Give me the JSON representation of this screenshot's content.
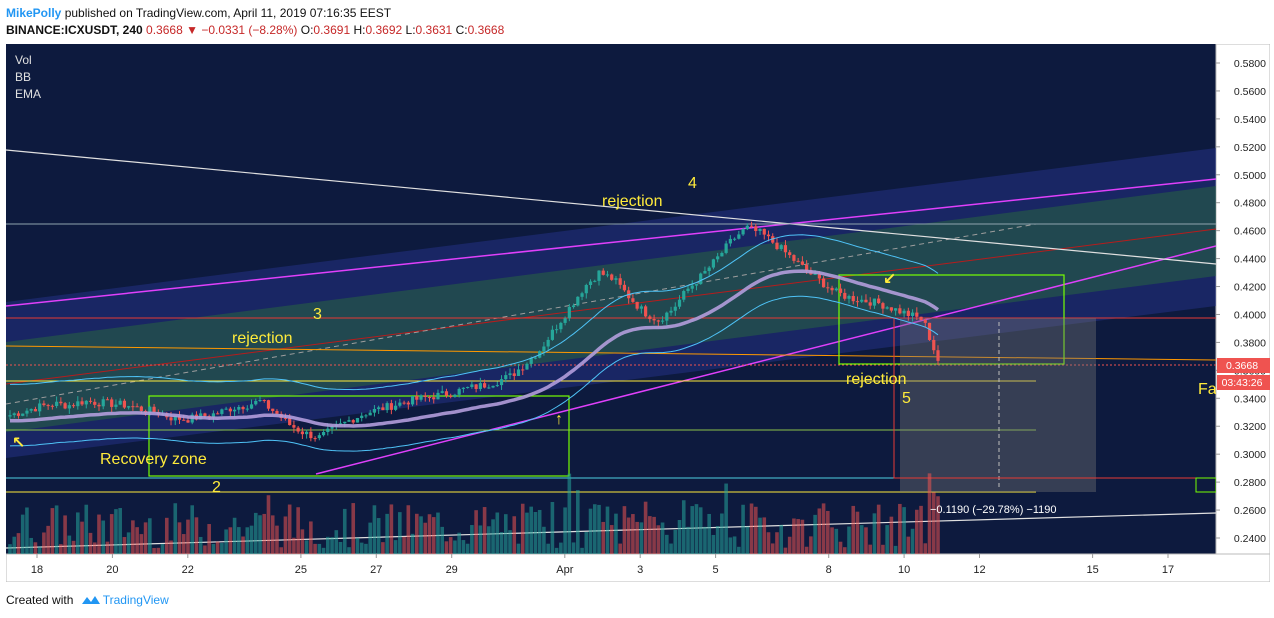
{
  "header": {
    "user": "MikePolly",
    "published_text": " published on TradingView.com, April 11, 2019 07:16:35 EEST",
    "symbol": "BINANCE:ICXUSDT, 240",
    "last": "0.3668",
    "change": "−0.0331 (−8.28%)",
    "o_label": "O:",
    "o_value": "0.3691",
    "h_label": "H:",
    "h_value": "0.3692",
    "l_label": "L:",
    "l_value": "0.3631",
    "c_label": "C:",
    "c_value": "0.3668"
  },
  "indicators": [
    "Vol",
    "BB",
    "EMA"
  ],
  "footer": {
    "created_with": "Created with",
    "brand": "TradingView"
  },
  "colors": {
    "background": "#0d1a3e",
    "up": "#26a69a",
    "down": "#ef5350",
    "annotation": "#ffeb3b",
    "pitchfork_magenta": "#e040fb",
    "ema": "#b39ddb"
  },
  "annotations": [
    {
      "id": "rej1",
      "text": "rejection"
    },
    {
      "id": "n3",
      "text": "3"
    },
    {
      "id": "rej2",
      "text": "rejection"
    },
    {
      "id": "n4",
      "text": "4"
    },
    {
      "id": "rej3",
      "text": "rejection"
    },
    {
      "id": "n5",
      "text": "5"
    },
    {
      "id": "recovery",
      "text": "Recovery zone"
    },
    {
      "id": "n2",
      "text": "2"
    },
    {
      "id": "fa",
      "text": "Fa"
    }
  ],
  "measure_label": "−0.1190 (−29.78%) −1190",
  "price_tags": {
    "current": "0.3668",
    "countdown": "03:43:26"
  },
  "chart_data": {
    "type": "candlestick",
    "ylim": [
      0.235,
      0.59
    ],
    "y_ticks": [
      "0.5800",
      "0.5600",
      "0.5400",
      "0.5200",
      "0.5000",
      "0.4800",
      "0.4600",
      "0.4400",
      "0.4200",
      "0.4000",
      "0.3800",
      "0.3600",
      "0.3400",
      "0.3200",
      "0.3000",
      "0.2800",
      "0.2600",
      "0.2400"
    ],
    "x_ticks": [
      "18",
      "20",
      "22",
      "25",
      "27",
      "29",
      "Apr",
      "3",
      "5",
      "8",
      "10",
      "12",
      "15",
      "17"
    ],
    "price_path": [
      0.328,
      0.331,
      0.334,
      0.336,
      0.335,
      0.338,
      0.337,
      0.336,
      0.335,
      0.332,
      0.33,
      0.326,
      0.325,
      0.327,
      0.329,
      0.333,
      0.335,
      0.338,
      0.33,
      0.321,
      0.315,
      0.312,
      0.318,
      0.324,
      0.329,
      0.332,
      0.335,
      0.338,
      0.34,
      0.342,
      0.344,
      0.347,
      0.349,
      0.352,
      0.356,
      0.365,
      0.375,
      0.39,
      0.405,
      0.42,
      0.43,
      0.425,
      0.413,
      0.402,
      0.396,
      0.404,
      0.418,
      0.428,
      0.44,
      0.453,
      0.462,
      0.458,
      0.45,
      0.441,
      0.432,
      0.424,
      0.416,
      0.412,
      0.41,
      0.408,
      0.404,
      0.4,
      0.396,
      0.367
    ],
    "last": 0.3668,
    "volume_note": "volume histogram at bottom of price pane"
  }
}
